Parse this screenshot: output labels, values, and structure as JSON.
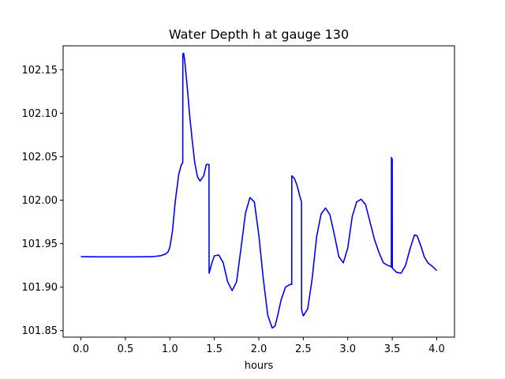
{
  "chart_data": {
    "type": "line",
    "title": "Water Depth h at gauge 130",
    "xlabel": "hours",
    "ylabel": "",
    "xlim": [
      -0.2,
      4.2
    ],
    "ylim": [
      101.8425,
      102.1775
    ],
    "xticks": [
      0.0,
      0.5,
      1.0,
      1.5,
      2.0,
      2.5,
      3.0,
      3.5,
      4.0
    ],
    "xtick_labels": [
      "0.0",
      "0.5",
      "1.0",
      "1.5",
      "2.0",
      "2.5",
      "3.0",
      "3.5",
      "4.0"
    ],
    "yticks": [
      101.85,
      101.9,
      101.95,
      102.0,
      102.05,
      102.1,
      102.15
    ],
    "ytick_labels": [
      "101.85",
      "101.90",
      "101.95",
      "102.00",
      "102.05",
      "102.10",
      "102.15"
    ],
    "grid": false,
    "line_color": "#0000ff",
    "series": [
      {
        "name": "",
        "x": [
          0.0,
          0.3,
          0.6,
          0.8,
          0.9,
          0.95,
          0.98,
          1.0,
          1.03,
          1.06,
          1.1,
          1.13,
          1.145,
          1.146,
          1.155,
          1.165,
          1.175,
          1.2,
          1.22,
          1.25,
          1.28,
          1.31,
          1.34,
          1.38,
          1.41,
          1.44,
          1.441,
          1.47,
          1.5,
          1.55,
          1.6,
          1.65,
          1.7,
          1.75,
          1.8,
          1.85,
          1.9,
          1.95,
          2.0,
          2.05,
          2.1,
          2.15,
          2.18,
          2.2,
          2.25,
          2.3,
          2.35,
          2.37,
          2.371,
          2.4,
          2.43,
          2.46,
          2.48,
          2.481,
          2.5,
          2.55,
          2.6,
          2.65,
          2.7,
          2.75,
          2.8,
          2.85,
          2.9,
          2.95,
          3.0,
          3.05,
          3.1,
          3.15,
          3.2,
          3.25,
          3.3,
          3.35,
          3.4,
          3.45,
          3.48,
          3.49,
          3.491,
          3.5,
          3.501,
          3.55,
          3.6,
          3.65,
          3.7,
          3.75,
          3.78,
          3.82,
          3.86,
          3.9,
          3.95,
          4.0
        ],
        "y": [
          101.935,
          101.9348,
          101.9348,
          101.935,
          101.9362,
          101.938,
          101.9405,
          101.946,
          101.965,
          101.998,
          102.03,
          102.041,
          102.043,
          102.168,
          102.169,
          102.162,
          102.152,
          102.125,
          102.1,
          102.07,
          102.043,
          102.027,
          102.022,
          102.028,
          102.041,
          102.041,
          101.916,
          101.927,
          101.936,
          101.937,
          101.928,
          101.906,
          101.896,
          101.906,
          101.945,
          101.985,
          102.003,
          101.998,
          101.96,
          101.91,
          101.868,
          101.853,
          101.855,
          101.862,
          101.885,
          101.9,
          101.903,
          101.903,
          102.028,
          102.025,
          102.017,
          102.005,
          101.998,
          101.874,
          101.867,
          101.875,
          101.91,
          101.958,
          101.984,
          101.991,
          101.983,
          101.96,
          101.935,
          101.928,
          101.945,
          101.981,
          101.998,
          102.001,
          101.995,
          101.975,
          101.955,
          101.94,
          101.928,
          101.925,
          101.924,
          101.923,
          102.049,
          102.047,
          101.922,
          101.917,
          101.916,
          101.925,
          101.944,
          101.96,
          101.959,
          101.948,
          101.935,
          101.928,
          101.924,
          101.919
        ]
      }
    ]
  }
}
